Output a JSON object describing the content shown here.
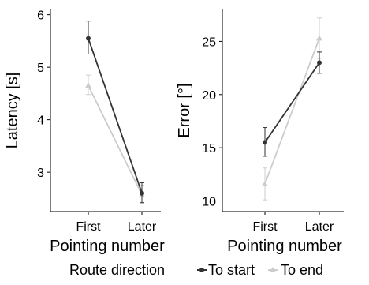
{
  "chart_data": [
    {
      "type": "line",
      "categories": [
        "First",
        "Later"
      ],
      "xlabel": "Pointing number",
      "ylabel": "Latency [s]",
      "ylim": [
        2.25,
        6.1
      ],
      "yticks": [
        3,
        4,
        5,
        6
      ],
      "series": [
        {
          "name": "To start",
          "values": [
            5.55,
            2.6
          ],
          "err_low": [
            5.25,
            2.42
          ],
          "err_high": [
            5.88,
            2.8
          ],
          "marker": "circle",
          "color": "#333333"
        },
        {
          "name": "To end",
          "values": [
            4.65,
            2.57
          ],
          "err_low": [
            4.48,
            2.4
          ],
          "err_high": [
            4.85,
            2.75
          ],
          "marker": "triangle",
          "color": "#cccccc"
        }
      ]
    },
    {
      "type": "line",
      "categories": [
        "First",
        "Later"
      ],
      "xlabel": "Pointing number",
      "ylabel": "Error [°]",
      "ylim": [
        9.0,
        28.0
      ],
      "yticks": [
        10,
        15,
        20,
        25
      ],
      "series": [
        {
          "name": "To start",
          "values": [
            15.5,
            23.0
          ],
          "err_low": [
            14.2,
            22.0
          ],
          "err_high": [
            16.9,
            24.0
          ],
          "marker": "circle",
          "color": "#333333"
        },
        {
          "name": "To end",
          "values": [
            11.6,
            25.3
          ],
          "err_low": [
            10.1,
            23.4
          ],
          "err_high": [
            13.1,
            27.2
          ],
          "marker": "triangle",
          "color": "#cccccc"
        }
      ]
    }
  ],
  "legend": {
    "title": "Route direction",
    "items": [
      {
        "label": "To start",
        "color": "#333333",
        "marker": "circle"
      },
      {
        "label": "To end",
        "color": "#cccccc",
        "marker": "triangle"
      }
    ]
  }
}
